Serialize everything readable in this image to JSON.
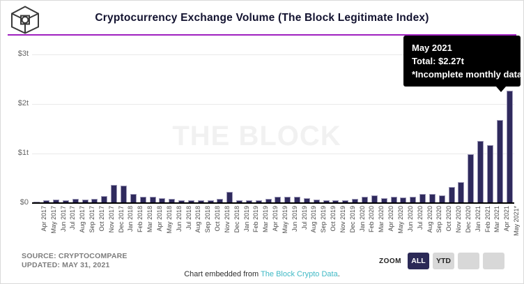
{
  "header": {
    "title": "Cryptocurrency Exchange Volume (The Block Legitimate Index)"
  },
  "tooltip": {
    "title": "May 2021",
    "total_label": "Total: ",
    "total_value": "$2.27t",
    "note": "*Incomplete monthly data"
  },
  "chart_data": {
    "type": "bar",
    "title": "Cryptocurrency Exchange Volume (The Block Legitimate Index)",
    "unit": "trillions USD",
    "categories": [
      "Apr 2017",
      "May 2017",
      "Jun 2017",
      "Jul 2017",
      "Aug 2017",
      "Sep 2017",
      "Oct 2017",
      "Nov 2017",
      "Dec 2017",
      "Jan 2018",
      "Feb 2018",
      "Mar 2018",
      "Apr 2018",
      "May 2018",
      "Jun 2018",
      "Jul 2018",
      "Aug 2018",
      "Sep 2018",
      "Oct 2018",
      "Nov 2018",
      "Dec 2018",
      "Jan 2019",
      "Feb 2019",
      "Mar 2019",
      "Apr 2019",
      "May 2019",
      "Jun 2019",
      "Jul 2019",
      "Aug 2019",
      "Sep 2019",
      "Oct 2019",
      "Nov 2019",
      "Dec 2019",
      "Jan 2020",
      "Feb 2020",
      "Mar 2020",
      "Apr 2020",
      "May 2020",
      "Jun 2020",
      "Jul 2020",
      "Aug 2020",
      "Sep 2020",
      "Oct 2020",
      "Nov 2020",
      "Dec 2020",
      "Jan 2021",
      "Feb 2021",
      "Mar 2021",
      "Apr 2021",
      "May 2021*"
    ],
    "values": [
      0.03,
      0.05,
      0.07,
      0.05,
      0.09,
      0.07,
      0.08,
      0.14,
      0.36,
      0.35,
      0.18,
      0.13,
      0.13,
      0.1,
      0.08,
      0.055,
      0.06,
      0.055,
      0.06,
      0.08,
      0.23,
      0.05,
      0.055,
      0.06,
      0.08,
      0.12,
      0.13,
      0.12,
      0.1,
      0.07,
      0.06,
      0.05,
      0.055,
      0.09,
      0.13,
      0.15,
      0.1,
      0.13,
      0.11,
      0.13,
      0.19,
      0.18,
      0.15,
      0.33,
      0.42,
      0.99,
      1.26,
      1.17,
      1.67,
      2.27
    ],
    "yticks": [
      {
        "label": "$0",
        "value": 0
      },
      {
        "label": "$1t",
        "value": 1
      },
      {
        "label": "$2t",
        "value": 2
      },
      {
        "label": "$3t",
        "value": 3
      }
    ],
    "ylim": [
      0,
      3.24
    ],
    "grid": true,
    "legend": "none",
    "watermark": "THE BLOCK",
    "highlighted_category": "May 2021*",
    "highlighted_value": "$2.27t",
    "bar_color": "#2f2a5d",
    "bar_border_color": "#9e9ab8"
  },
  "footer": {
    "source_line1": "SOURCE: CRYPTOCOMPARE",
    "source_line2": "UPDATED: MAY 31, 2021",
    "zoom_label": "ZOOM",
    "zoom_buttons": [
      {
        "label": "ALL",
        "active": true
      },
      {
        "label": "YTD",
        "active": false
      },
      {
        "label": "",
        "active": false
      },
      {
        "label": "",
        "active": false
      }
    ],
    "caption_prefix": "Chart embedded from ",
    "caption_link": "The Block Crypto Data",
    "caption_suffix": "."
  },
  "colors": {
    "accent_purple": "#a020c0",
    "bar_fill": "#2f2a5d",
    "active_button": "#2b2956",
    "link_teal": "#3fb9c5",
    "tooltip_bg": "#000000"
  }
}
